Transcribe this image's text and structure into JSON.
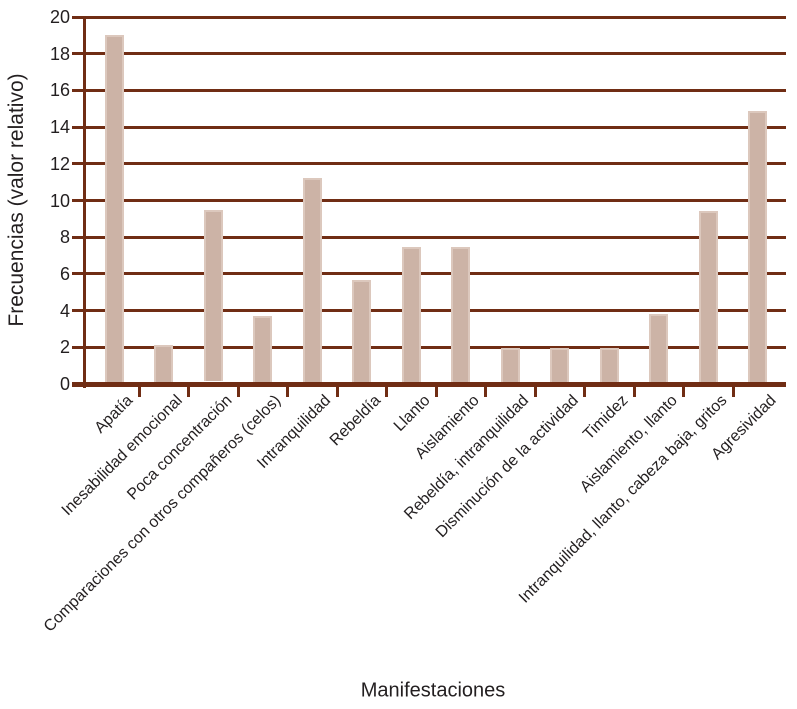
{
  "figure": {
    "background_color": "#ffffff",
    "text_color": "#231f20"
  },
  "chart_data": {
    "type": "bar",
    "title": "",
    "xlabel": "Manifestaciones",
    "ylabel": "Frecuencias (valor relativo)",
    "categories": [
      "Apatía",
      "Inesabilidad emocional",
      "Poca concentración",
      "Comparaciones con otros compañeros (celos)",
      "Intranquilidad",
      "Rebeldía",
      "Llanto",
      "Aislamiento",
      "Rebeldía, intranquilidad",
      "Disminución de la actividad",
      "Timidez",
      "Aislamiento, llanto",
      "Intranquilidad, llanto, cabeza baja, gritos",
      "Agresividad"
    ],
    "values": [
      19,
      2.1,
      9.5,
      3.7,
      11.2,
      5.65,
      7.45,
      7.45,
      1.95,
      1.95,
      1.95,
      3.8,
      9.45,
      14.9
    ],
    "bar_bottom_start": [
      0,
      0,
      0.15,
      0,
      0,
      0,
      0,
      0,
      0,
      0,
      0,
      0,
      0,
      0
    ],
    "ylim": [
      0,
      20
    ],
    "yticks": [
      0,
      2,
      4,
      6,
      8,
      10,
      12,
      14,
      16,
      18,
      20
    ],
    "grid": "horizontal",
    "legend": "none",
    "bar_color": "#ccb3a6",
    "bar_edge_highlight": "#dcc8bd",
    "axis_color": "#702d14"
  }
}
